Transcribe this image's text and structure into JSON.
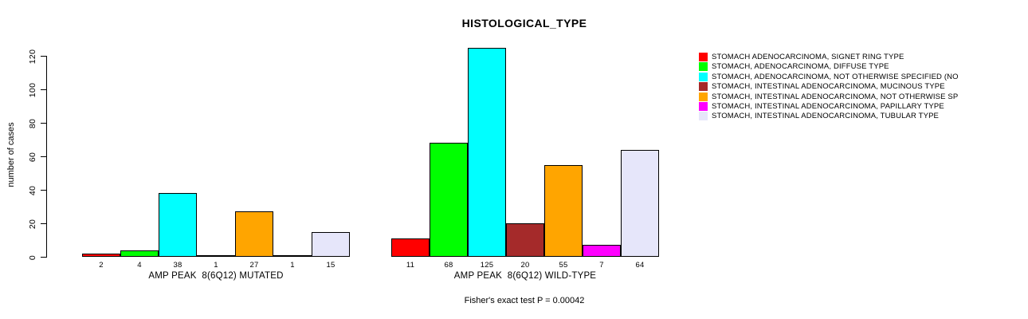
{
  "chart_data": {
    "type": "bar",
    "title": "HISTOLOGICAL_TYPE",
    "ylabel": "number of cases",
    "ylim": [
      0,
      125
    ],
    "yticks": [
      0,
      20,
      40,
      60,
      80,
      100,
      120
    ],
    "grid": false,
    "legend_position": "top-right",
    "categories": [
      "STOMACH ADENOCARCINOMA, SIGNET RING TYPE",
      "STOMACH, ADENOCARCINOMA, DIFFUSE TYPE",
      "STOMACH, ADENOCARCINOMA, NOT OTHERWISE SPECIFIED (NO",
      "STOMACH, INTESTINAL ADENOCARCINOMA, MUCINOUS TYPE",
      "STOMACH, INTESTINAL ADENOCARCINOMA, NOT OTHERWISE SP",
      "STOMACH, INTESTINAL ADENOCARCINOMA, PAPILLARY TYPE",
      "STOMACH, INTESTINAL ADENOCARCINOMA, TUBULAR TYPE"
    ],
    "colors": [
      "#FF0000",
      "#00FF00",
      "#00FFFF",
      "#A52A2A",
      "#FFA500",
      "#FF00FF",
      "#E6E6FA"
    ],
    "groups": [
      {
        "label": "AMP PEAK  8(6Q12) MUTATED",
        "values": [
          2,
          4,
          38,
          1,
          27,
          1,
          15
        ]
      },
      {
        "label": "AMP PEAK  8(6Q12) WILD-TYPE",
        "values": [
          11,
          68,
          125,
          20,
          55,
          7,
          64
        ]
      }
    ],
    "footnote": "Fisher's exact test P = 0.00042"
  }
}
